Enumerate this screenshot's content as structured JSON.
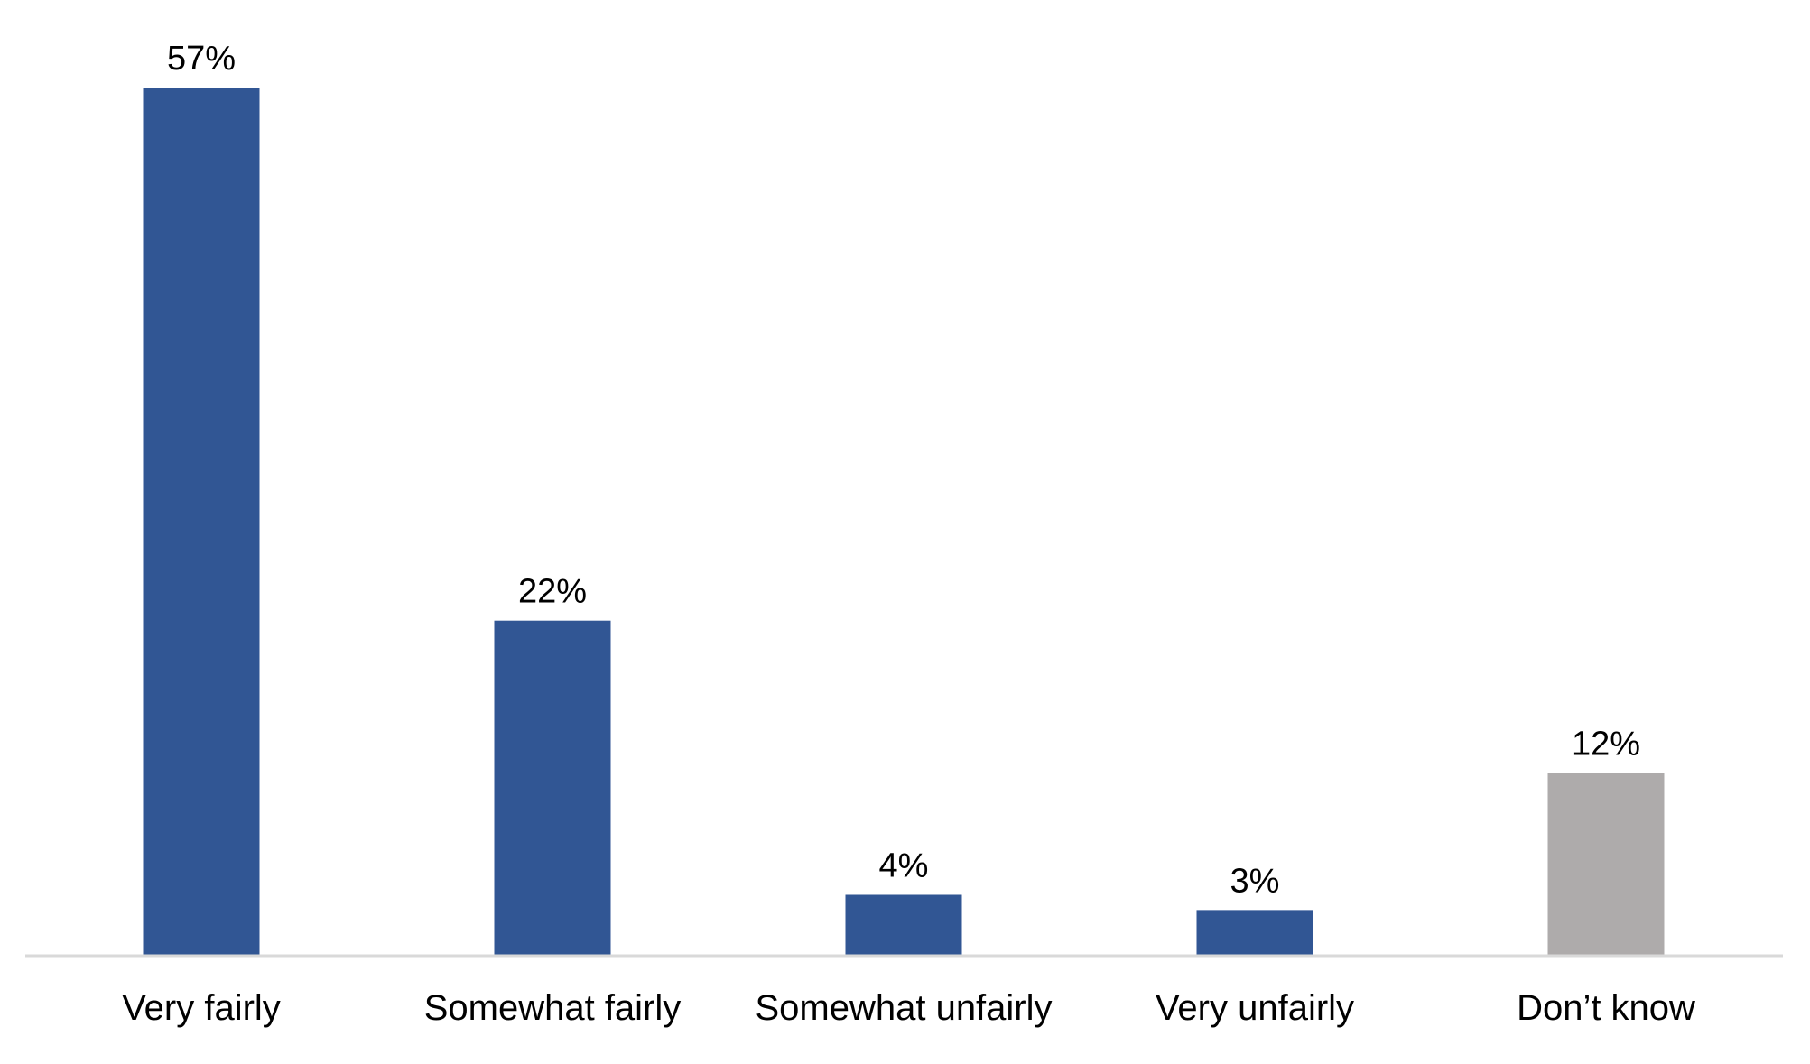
{
  "chart_data": {
    "type": "bar",
    "title": "",
    "xlabel": "",
    "ylabel": "",
    "categories": [
      "Very fairly",
      "Somewhat fairly",
      "Somewhat unfairly",
      "Very unfairly",
      "Don’t know"
    ],
    "values": [
      57,
      22,
      4,
      3,
      12
    ],
    "value_labels": [
      "57%",
      "22%",
      "4%",
      "3%",
      "12%"
    ],
    "ylim": [
      0,
      57
    ],
    "grid": false,
    "legend": "none",
    "colors": [
      "#315694",
      "#315694",
      "#315694",
      "#315694",
      "#aeabab"
    ]
  }
}
